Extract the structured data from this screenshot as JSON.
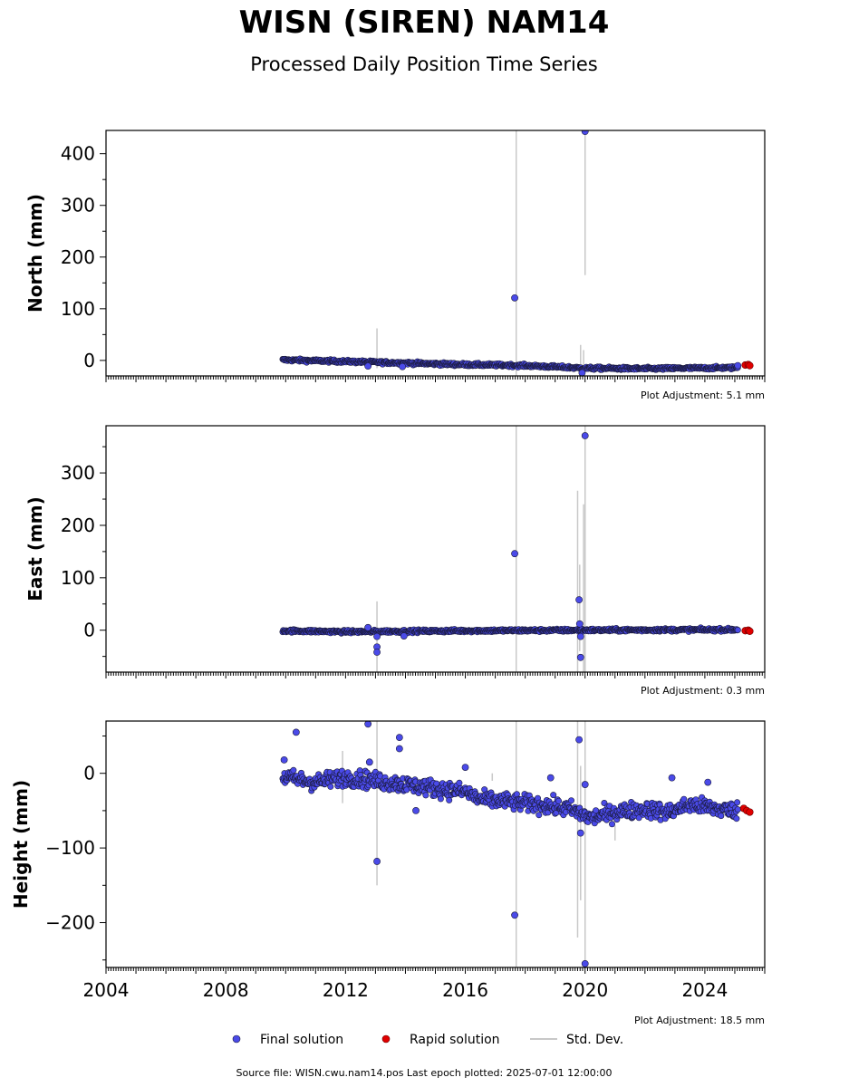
{
  "header": {
    "title": "WISN (SIREN) NAM14",
    "subtitle": "Processed Daily Position Time Series"
  },
  "chart_data": [
    {
      "type": "scatter",
      "ylabel": "North (mm)",
      "xlim": [
        2004.0,
        2026.0
      ],
      "ylim": [
        -30,
        445
      ],
      "yticks": [
        0,
        100,
        200,
        300,
        400
      ],
      "adjustment": "Plot Adjustment: 5.1 mm",
      "show_xtick_labels": false,
      "trend": [
        [
          2009.9,
          1
        ],
        [
          2012.0,
          -2
        ],
        [
          2016.0,
          -8
        ],
        [
          2018.0,
          -10
        ],
        [
          2020.0,
          -15
        ],
        [
          2022.0,
          -16
        ],
        [
          2025.1,
          -14
        ]
      ],
      "noise": 2,
      "outliers": [
        [
          2012.75,
          -11
        ],
        [
          2013.9,
          -12
        ],
        [
          2017.65,
          121
        ],
        [
          2019.9,
          -24
        ],
        [
          2020.0,
          443
        ],
        [
          2025.1,
          -10
        ]
      ],
      "rapid": [
        [
          2025.35,
          -9
        ],
        [
          2025.45,
          -8
        ],
        [
          2025.5,
          -10
        ]
      ],
      "stddev": [
        [
          2013.05,
          -15,
          62
        ],
        [
          2017.7,
          -30,
          445
        ],
        [
          2019.85,
          -30,
          30
        ],
        [
          2019.95,
          -40,
          20
        ],
        [
          2020.0,
          165,
          440
        ]
      ]
    },
    {
      "type": "scatter",
      "ylabel": "East (mm)",
      "xlim": [
        2004.0,
        2026.0
      ],
      "ylim": [
        -80,
        390
      ],
      "yticks": [
        0,
        100,
        200,
        300
      ],
      "adjustment": "Plot Adjustment: 0.3 mm",
      "show_xtick_labels": false,
      "trend": [
        [
          2009.9,
          -1
        ],
        [
          2012.0,
          -3
        ],
        [
          2016.0,
          -1
        ],
        [
          2020.0,
          0
        ],
        [
          2025.1,
          1
        ]
      ],
      "noise": 2,
      "outliers": [
        [
          2012.75,
          5
        ],
        [
          2013.05,
          -12
        ],
        [
          2013.05,
          -32
        ],
        [
          2013.05,
          -42
        ],
        [
          2013.95,
          -11
        ],
        [
          2017.65,
          146
        ],
        [
          2019.8,
          58
        ],
        [
          2019.82,
          12
        ],
        [
          2019.85,
          -12
        ],
        [
          2019.85,
          -52
        ],
        [
          2020.0,
          371
        ]
      ],
      "rapid": [
        [
          2025.35,
          -1
        ],
        [
          2025.45,
          0
        ],
        [
          2025.5,
          -2
        ]
      ],
      "stddev": [
        [
          2013.05,
          -80,
          55
        ],
        [
          2017.7,
          -80,
          390
        ],
        [
          2019.75,
          -80,
          266
        ],
        [
          2019.82,
          -40,
          125
        ],
        [
          2019.95,
          -80,
          240
        ],
        [
          2020.0,
          -80,
          390
        ]
      ]
    },
    {
      "type": "scatter",
      "ylabel": "Height (mm)",
      "xlim": [
        2004.0,
        2026.0
      ],
      "ylim": [
        -260,
        70
      ],
      "yticks": [
        -200,
        -100,
        0
      ],
      "adjustment": "Plot Adjustment: 18.5 mm",
      "show_xtick_labels": true,
      "trend": [
        [
          2009.9,
          -5
        ],
        [
          2011.0,
          -12
        ],
        [
          2012.0,
          -5
        ],
        [
          2013.0,
          -10
        ],
        [
          2014.0,
          -15
        ],
        [
          2015.0,
          -20
        ],
        [
          2016.0,
          -25
        ],
        [
          2016.5,
          -35
        ],
        [
          2017.5,
          -38
        ],
        [
          2018.5,
          -42
        ],
        [
          2019.5,
          -48
        ],
        [
          2020.2,
          -60
        ],
        [
          2021.0,
          -52
        ],
        [
          2022.0,
          -48
        ],
        [
          2022.8,
          -52
        ],
        [
          2023.5,
          -42
        ],
        [
          2024.5,
          -48
        ],
        [
          2025.1,
          -50
        ]
      ],
      "noise": 8,
      "outliers": [
        [
          2009.95,
          18
        ],
        [
          2010.35,
          55
        ],
        [
          2012.75,
          66
        ],
        [
          2012.8,
          15
        ],
        [
          2013.05,
          -118
        ],
        [
          2013.8,
          48
        ],
        [
          2013.8,
          33
        ],
        [
          2014.35,
          -50
        ],
        [
          2016.0,
          8
        ],
        [
          2017.65,
          -190
        ],
        [
          2018.85,
          -6
        ],
        [
          2019.8,
          45
        ],
        [
          2019.85,
          -80
        ],
        [
          2020.0,
          -255
        ],
        [
          2020.0,
          -15
        ],
        [
          2022.9,
          -6
        ],
        [
          2024.1,
          -12
        ]
      ],
      "rapid": [
        [
          2025.3,
          -47
        ],
        [
          2025.4,
          -50
        ],
        [
          2025.5,
          -52
        ]
      ],
      "stddev": [
        [
          2011.9,
          -40,
          30
        ],
        [
          2013.05,
          -150,
          70
        ],
        [
          2016.9,
          -10,
          0
        ],
        [
          2017.7,
          -260,
          70
        ],
        [
          2019.75,
          -220,
          70
        ],
        [
          2019.85,
          -170,
          10
        ],
        [
          2020.0,
          -260,
          70
        ],
        [
          2021.0,
          -90,
          -70
        ]
      ]
    }
  ],
  "xaxis": {
    "tick_labels": [
      "2004",
      "2008",
      "2012",
      "2016",
      "2020",
      "2024"
    ],
    "tick_values": [
      2004,
      2008,
      2012,
      2016,
      2020,
      2024
    ]
  },
  "legend": {
    "final": "Final solution",
    "rapid": "Rapid solution",
    "stddev": "Std. Dev."
  },
  "footer": {
    "source": "Source file: WISN.cwu.nam14.pos  Last epoch plotted: 2025-07-01 12:00:00"
  },
  "colors": {
    "final": "#4a4ae8",
    "final_edge": "#1a1a3a",
    "rapid": "#e00000",
    "stddev": "#c8c8c8"
  }
}
